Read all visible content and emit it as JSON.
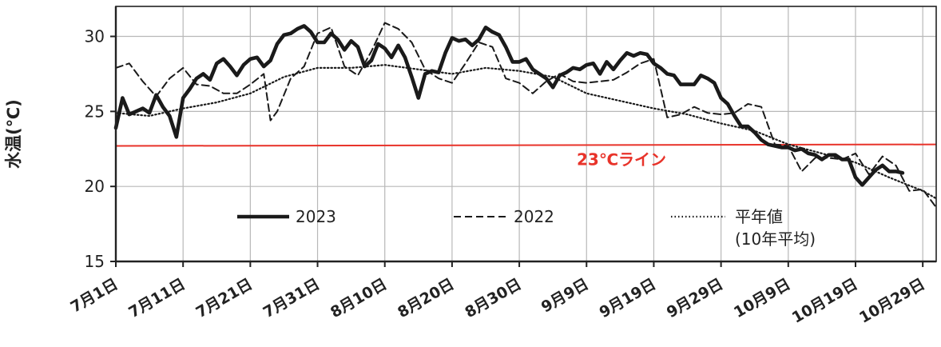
{
  "chart_data": {
    "type": "line",
    "ylabel": "水温(℃)",
    "ylim": [
      15,
      32
    ],
    "yticks": [
      15,
      20,
      25,
      30
    ],
    "xlim": [
      0,
      122
    ],
    "xticks": [
      {
        "day": 0,
        "label": "7月1日"
      },
      {
        "day": 10,
        "label": "7月11日"
      },
      {
        "day": 20,
        "label": "7月21日"
      },
      {
        "day": 30,
        "label": "7月31日"
      },
      {
        "day": 40,
        "label": "8月10日"
      },
      {
        "day": 50,
        "label": "8月20日"
      },
      {
        "day": 60,
        "label": "8月30日"
      },
      {
        "day": 70,
        "label": "9月9日"
      },
      {
        "day": 80,
        "label": "9月19日"
      },
      {
        "day": 90,
        "label": "9月29日"
      },
      {
        "day": 100,
        "label": "10月9日"
      },
      {
        "day": 110,
        "label": "10月19日"
      },
      {
        "day": 120,
        "label": "10月29日"
      }
    ],
    "grid": true,
    "reference_line": {
      "label": "23℃ライン",
      "y_start": 22.7,
      "y_end": 22.8,
      "color": "#e8332a"
    },
    "series": [
      {
        "name": "2023",
        "style": "solid-thick",
        "color": "#1a1a1a",
        "x": [
          0,
          1,
          2,
          3,
          4,
          5,
          6,
          7,
          8,
          9,
          10,
          11,
          12,
          13,
          14,
          15,
          16,
          17,
          18,
          19,
          20,
          21,
          22,
          23,
          24,
          25,
          26,
          27,
          28,
          29,
          30,
          31,
          32,
          33,
          34,
          35,
          36,
          37,
          38,
          39,
          40,
          41,
          42,
          43,
          44,
          45,
          46,
          47,
          48,
          49,
          50,
          51,
          52,
          53,
          54,
          55,
          56,
          57,
          58,
          59,
          60,
          61,
          62,
          63,
          64,
          65,
          66,
          67,
          68,
          69,
          70,
          71,
          72,
          73,
          74,
          75,
          76,
          77,
          78,
          79,
          80,
          81,
          82,
          83,
          84,
          85,
          86,
          87,
          88,
          89,
          90,
          91,
          92,
          93,
          94,
          95,
          96,
          97,
          98,
          99,
          100,
          101,
          102,
          103,
          104,
          105,
          106,
          107,
          108,
          109,
          110,
          111,
          112,
          113,
          114,
          115,
          116,
          117
        ],
        "values": [
          23.9,
          25.9,
          24.8,
          25.0,
          25.2,
          24.9,
          26.1,
          25.3,
          24.7,
          23.3,
          25.9,
          26.5,
          27.2,
          27.5,
          27.1,
          28.2,
          28.5,
          28.0,
          27.4,
          28.1,
          28.5,
          28.6,
          28.0,
          28.4,
          29.5,
          30.1,
          30.2,
          30.5,
          30.7,
          30.3,
          29.6,
          29.6,
          30.2,
          29.8,
          29.1,
          29.7,
          29.3,
          28.0,
          28.4,
          29.5,
          29.2,
          28.6,
          29.4,
          28.6,
          27.3,
          25.9,
          27.5,
          27.7,
          27.6,
          28.9,
          29.9,
          29.7,
          29.8,
          29.4,
          29.8,
          30.6,
          30.3,
          30.1,
          29.3,
          28.3,
          28.3,
          28.5,
          27.8,
          27.5,
          27.2,
          26.6,
          27.4,
          27.6,
          27.9,
          27.8,
          28.1,
          28.2,
          27.5,
          28.3,
          27.8,
          28.4,
          28.9,
          28.7,
          28.9,
          28.8,
          28.2,
          27.9,
          27.5,
          27.4,
          26.8,
          26.8,
          26.8,
          27.4,
          27.2,
          26.9,
          25.9,
          25.5,
          24.7,
          24.0,
          24.0,
          23.6,
          23.1,
          22.8,
          22.7,
          22.6,
          22.6,
          22.4,
          22.5,
          22.2,
          22.1,
          21.8,
          22.1,
          22.1,
          21.8,
          21.8,
          20.6,
          20.1,
          20.6,
          21.1,
          21.4,
          21.0,
          21.0,
          20.9
        ]
      },
      {
        "name": "2022",
        "style": "dashed",
        "color": "#1a1a1a",
        "x": [
          0,
          2,
          4,
          6,
          8,
          10,
          12,
          14,
          16,
          18,
          20,
          22,
          23,
          24,
          26,
          28,
          30,
          32,
          34,
          36,
          38,
          40,
          42,
          44,
          46,
          48,
          50,
          52,
          54,
          56,
          58,
          60,
          62,
          64,
          66,
          68,
          70,
          72,
          74,
          76,
          78,
          80,
          82,
          84,
          86,
          88,
          90,
          92,
          94,
          96,
          98,
          100,
          102,
          104,
          106,
          108,
          110,
          112,
          114,
          116,
          118,
          120,
          122
        ],
        "values": [
          27.9,
          28.2,
          27.0,
          26.0,
          27.2,
          27.9,
          26.8,
          26.7,
          26.2,
          26.2,
          26.8,
          27.5,
          24.4,
          25.0,
          27.2,
          28.0,
          30.2,
          30.6,
          28.0,
          27.4,
          29.0,
          30.9,
          30.5,
          29.6,
          27.8,
          27.2,
          26.9,
          28.2,
          29.6,
          29.3,
          27.2,
          26.9,
          26.2,
          27.0,
          27.5,
          27.0,
          26.9,
          27.0,
          27.1,
          27.6,
          28.2,
          28.5,
          24.6,
          24.8,
          25.3,
          24.9,
          24.8,
          24.9,
          25.5,
          25.3,
          22.8,
          22.7,
          21.0,
          21.9,
          21.9,
          21.8,
          22.2,
          20.8,
          22.0,
          21.4,
          19.7,
          19.8,
          18.6
        ]
      },
      {
        "name": "平年値",
        "name_line2": "(10年平均)",
        "style": "dotted",
        "color": "#1a1a1a",
        "x": [
          0,
          5,
          10,
          15,
          20,
          25,
          30,
          35,
          40,
          45,
          50,
          55,
          60,
          65,
          70,
          75,
          80,
          85,
          90,
          95,
          100,
          105,
          110,
          115,
          120,
          122
        ],
        "values": [
          24.9,
          24.7,
          25.2,
          25.6,
          26.2,
          27.3,
          27.9,
          27.9,
          28.1,
          27.8,
          27.5,
          27.9,
          27.7,
          27.3,
          26.2,
          25.7,
          25.2,
          24.8,
          24.2,
          23.7,
          22.8,
          22.2,
          21.6,
          20.6,
          19.7,
          19.2
        ]
      }
    ]
  }
}
